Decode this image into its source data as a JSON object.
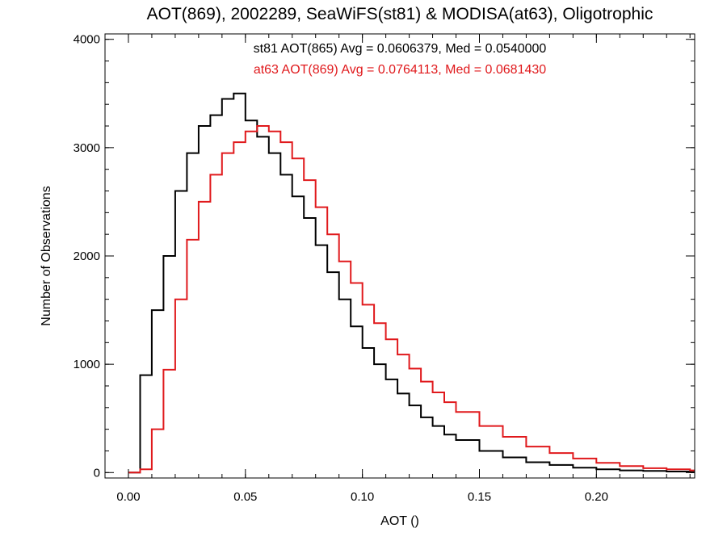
{
  "chart_data": {
    "type": "line",
    "title": "AOT(869), 2002289, SeaWiFS(st81) & MODISA(at63), Oligotrophic",
    "xlabel": "AOT ()",
    "ylabel": "Number of Observations",
    "xlim": [
      -0.01,
      0.242
    ],
    "ylim": [
      -50,
      4050
    ],
    "xticks": [
      0.0,
      0.05,
      0.1,
      0.15,
      0.2
    ],
    "xtick_labels": [
      "0.00",
      "0.05",
      "0.10",
      "0.15",
      "0.20"
    ],
    "yticks": [
      0,
      1000,
      2000,
      3000,
      4000
    ],
    "ytick_labels": [
      "0",
      "1000",
      "2000",
      "3000",
      "4000"
    ],
    "grid": false,
    "legend_placement": "top-center",
    "series": [
      {
        "name": "st81 AOT(865) Avg = 0.0606379, Med = 0.0540000",
        "color": "#000000",
        "x": [
          0.0,
          0.005,
          0.01,
          0.015,
          0.02,
          0.025,
          0.03,
          0.035,
          0.04,
          0.045,
          0.05,
          0.055,
          0.06,
          0.065,
          0.07,
          0.075,
          0.08,
          0.085,
          0.09,
          0.095,
          0.1,
          0.105,
          0.11,
          0.115,
          0.12,
          0.125,
          0.13,
          0.135,
          0.14,
          0.15,
          0.16,
          0.17,
          0.18,
          0.19,
          0.2,
          0.21,
          0.22,
          0.23,
          0.24
        ],
        "y": [
          0,
          900,
          1500,
          2000,
          2600,
          2950,
          3200,
          3300,
          3450,
          3500,
          3250,
          3100,
          2950,
          2750,
          2550,
          2350,
          2100,
          1850,
          1600,
          1350,
          1150,
          1000,
          860,
          730,
          620,
          510,
          430,
          350,
          300,
          200,
          140,
          95,
          70,
          45,
          30,
          20,
          15,
          10,
          5
        ]
      },
      {
        "name": "at63 AOT(869) Avg = 0.0764113, Med = 0.0681430",
        "color": "#e0191c",
        "x": [
          0.0,
          0.005,
          0.01,
          0.015,
          0.02,
          0.025,
          0.03,
          0.035,
          0.04,
          0.045,
          0.05,
          0.055,
          0.06,
          0.065,
          0.07,
          0.075,
          0.08,
          0.085,
          0.09,
          0.095,
          0.1,
          0.105,
          0.11,
          0.115,
          0.12,
          0.125,
          0.13,
          0.135,
          0.14,
          0.15,
          0.16,
          0.17,
          0.18,
          0.19,
          0.2,
          0.21,
          0.22,
          0.23,
          0.24
        ],
        "y": [
          0,
          30,
          400,
          950,
          1600,
          2150,
          2500,
          2750,
          2950,
          3050,
          3150,
          3200,
          3150,
          3050,
          2900,
          2700,
          2450,
          2200,
          1950,
          1750,
          1550,
          1380,
          1230,
          1090,
          960,
          840,
          740,
          650,
          560,
          430,
          330,
          240,
          180,
          130,
          90,
          60,
          40,
          30,
          20
        ]
      }
    ]
  }
}
